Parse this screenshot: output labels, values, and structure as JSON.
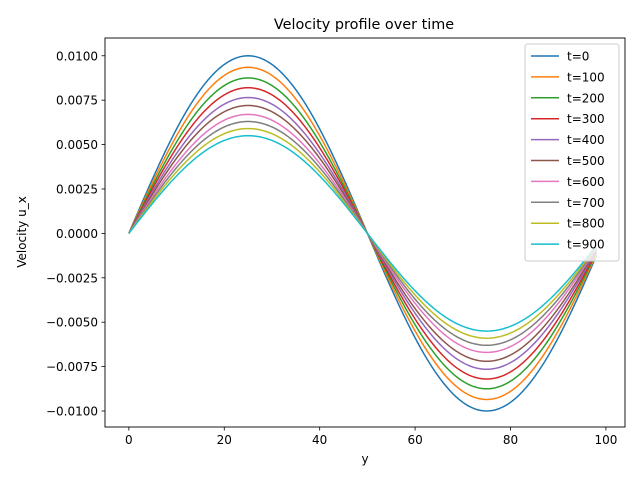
{
  "chart_data": {
    "type": "line",
    "title": "Velocity profile over time",
    "xlabel": "y",
    "ylabel": "Velocity u_x",
    "xlim": [
      -5,
      104
    ],
    "ylim": [
      -0.0109,
      0.011
    ],
    "xticks": [
      0,
      20,
      40,
      60,
      80,
      100
    ],
    "yticks": [
      -0.01,
      -0.0075,
      -0.005,
      -0.0025,
      0,
      0.0025,
      0.005,
      0.0075,
      0.01
    ],
    "xtick_labels": [
      "0",
      "20",
      "40",
      "60",
      "80",
      "100"
    ],
    "ytick_labels": [
      "−0.0100",
      "−0.0075",
      "−0.0050",
      "−0.0025",
      "0.0000",
      "0.0025",
      "0.0050",
      "0.0075",
      "0.0100"
    ],
    "grid": false,
    "legend_position": "upper right",
    "x": [
      0,
      5,
      10,
      15,
      20,
      25,
      30,
      35,
      40,
      45,
      50,
      55,
      60,
      65,
      70,
      75,
      80,
      85,
      90,
      95,
      98
    ],
    "series": [
      {
        "name": "t=0",
        "color": "#1f77b4",
        "amplitude": 0.01,
        "values": [
          0,
          0.00309,
          0.00588,
          0.00809,
          0.00951,
          0.01,
          0.00951,
          0.00809,
          0.00588,
          0.00309,
          0,
          -0.00309,
          -0.00588,
          -0.00809,
          -0.00951,
          -0.01,
          -0.00951,
          -0.00809,
          -0.00588,
          -0.00309,
          -0.00125
        ]
      },
      {
        "name": "t=100",
        "color": "#ff7f0e",
        "amplitude": 0.00935,
        "values": [
          0,
          0.00289,
          0.0055,
          0.00756,
          0.00889,
          0.00935,
          0.00889,
          0.00756,
          0.0055,
          0.00289,
          0,
          -0.00289,
          -0.0055,
          -0.00756,
          -0.00889,
          -0.00935,
          -0.00889,
          -0.00756,
          -0.0055,
          -0.00289,
          -0.00117
        ]
      },
      {
        "name": "t=200",
        "color": "#2ca02c",
        "amplitude": 0.00875,
        "values": [
          0,
          0.0027,
          0.00514,
          0.00708,
          0.00832,
          0.00875,
          0.00832,
          0.00708,
          0.00514,
          0.0027,
          0,
          -0.0027,
          -0.00514,
          -0.00708,
          -0.00832,
          -0.00875,
          -0.00832,
          -0.00708,
          -0.00514,
          -0.0027,
          -0.00109
        ]
      },
      {
        "name": "t=300",
        "color": "#d62728",
        "amplitude": 0.0082,
        "values": [
          0,
          0.00253,
          0.00482,
          0.00663,
          0.0078,
          0.0082,
          0.0078,
          0.00663,
          0.00482,
          0.00253,
          0,
          -0.00253,
          -0.00482,
          -0.00663,
          -0.0078,
          -0.0082,
          -0.0078,
          -0.00663,
          -0.00482,
          -0.00253,
          -0.00103
        ]
      },
      {
        "name": "t=400",
        "color": "#9467bd",
        "amplitude": 0.00765,
        "values": [
          0,
          0.00236,
          0.0045,
          0.00619,
          0.00728,
          0.00765,
          0.00728,
          0.00619,
          0.0045,
          0.00236,
          0,
          -0.00236,
          -0.0045,
          -0.00619,
          -0.00728,
          -0.00765,
          -0.00728,
          -0.00619,
          -0.0045,
          -0.00236,
          -0.00096
        ]
      },
      {
        "name": "t=500",
        "color": "#8c564b",
        "amplitude": 0.0072,
        "values": [
          0,
          0.00222,
          0.00423,
          0.00583,
          0.00685,
          0.0072,
          0.00685,
          0.00583,
          0.00423,
          0.00222,
          0,
          -0.00222,
          -0.00423,
          -0.00583,
          -0.00685,
          -0.0072,
          -0.00685,
          -0.00583,
          -0.00423,
          -0.00222,
          -0.0009
        ]
      },
      {
        "name": "t=600",
        "color": "#e377c2",
        "amplitude": 0.0067,
        "values": [
          0,
          0.00207,
          0.00394,
          0.00542,
          0.00637,
          0.0067,
          0.00637,
          0.00542,
          0.00394,
          0.00207,
          0,
          -0.00207,
          -0.00394,
          -0.00542,
          -0.00637,
          -0.0067,
          -0.00637,
          -0.00542,
          -0.00394,
          -0.00207,
          -0.00084
        ]
      },
      {
        "name": "t=700",
        "color": "#7f7f7f",
        "amplitude": 0.0063,
        "values": [
          0,
          0.00195,
          0.0037,
          0.0051,
          0.00599,
          0.0063,
          0.00599,
          0.0051,
          0.0037,
          0.00195,
          0,
          -0.00195,
          -0.0037,
          -0.0051,
          -0.00599,
          -0.0063,
          -0.00599,
          -0.0051,
          -0.0037,
          -0.00195,
          -0.00079
        ]
      },
      {
        "name": "t=800",
        "color": "#bcbd22",
        "amplitude": 0.0059,
        "values": [
          0,
          0.00182,
          0.00347,
          0.00477,
          0.00561,
          0.0059,
          0.00561,
          0.00477,
          0.00347,
          0.00182,
          0,
          -0.00182,
          -0.00347,
          -0.00477,
          -0.00561,
          -0.0059,
          -0.00561,
          -0.00477,
          -0.00347,
          -0.00182,
          -0.00074
        ]
      },
      {
        "name": "t=900",
        "color": "#17becf",
        "amplitude": 0.0055,
        "values": [
          0,
          0.0017,
          0.00323,
          0.00445,
          0.00523,
          0.0055,
          0.00523,
          0.00445,
          0.00323,
          0.0017,
          0,
          -0.0017,
          -0.00323,
          -0.00445,
          -0.00523,
          -0.0055,
          -0.00523,
          -0.00445,
          -0.00323,
          -0.0017,
          -0.00069
        ]
      }
    ]
  }
}
